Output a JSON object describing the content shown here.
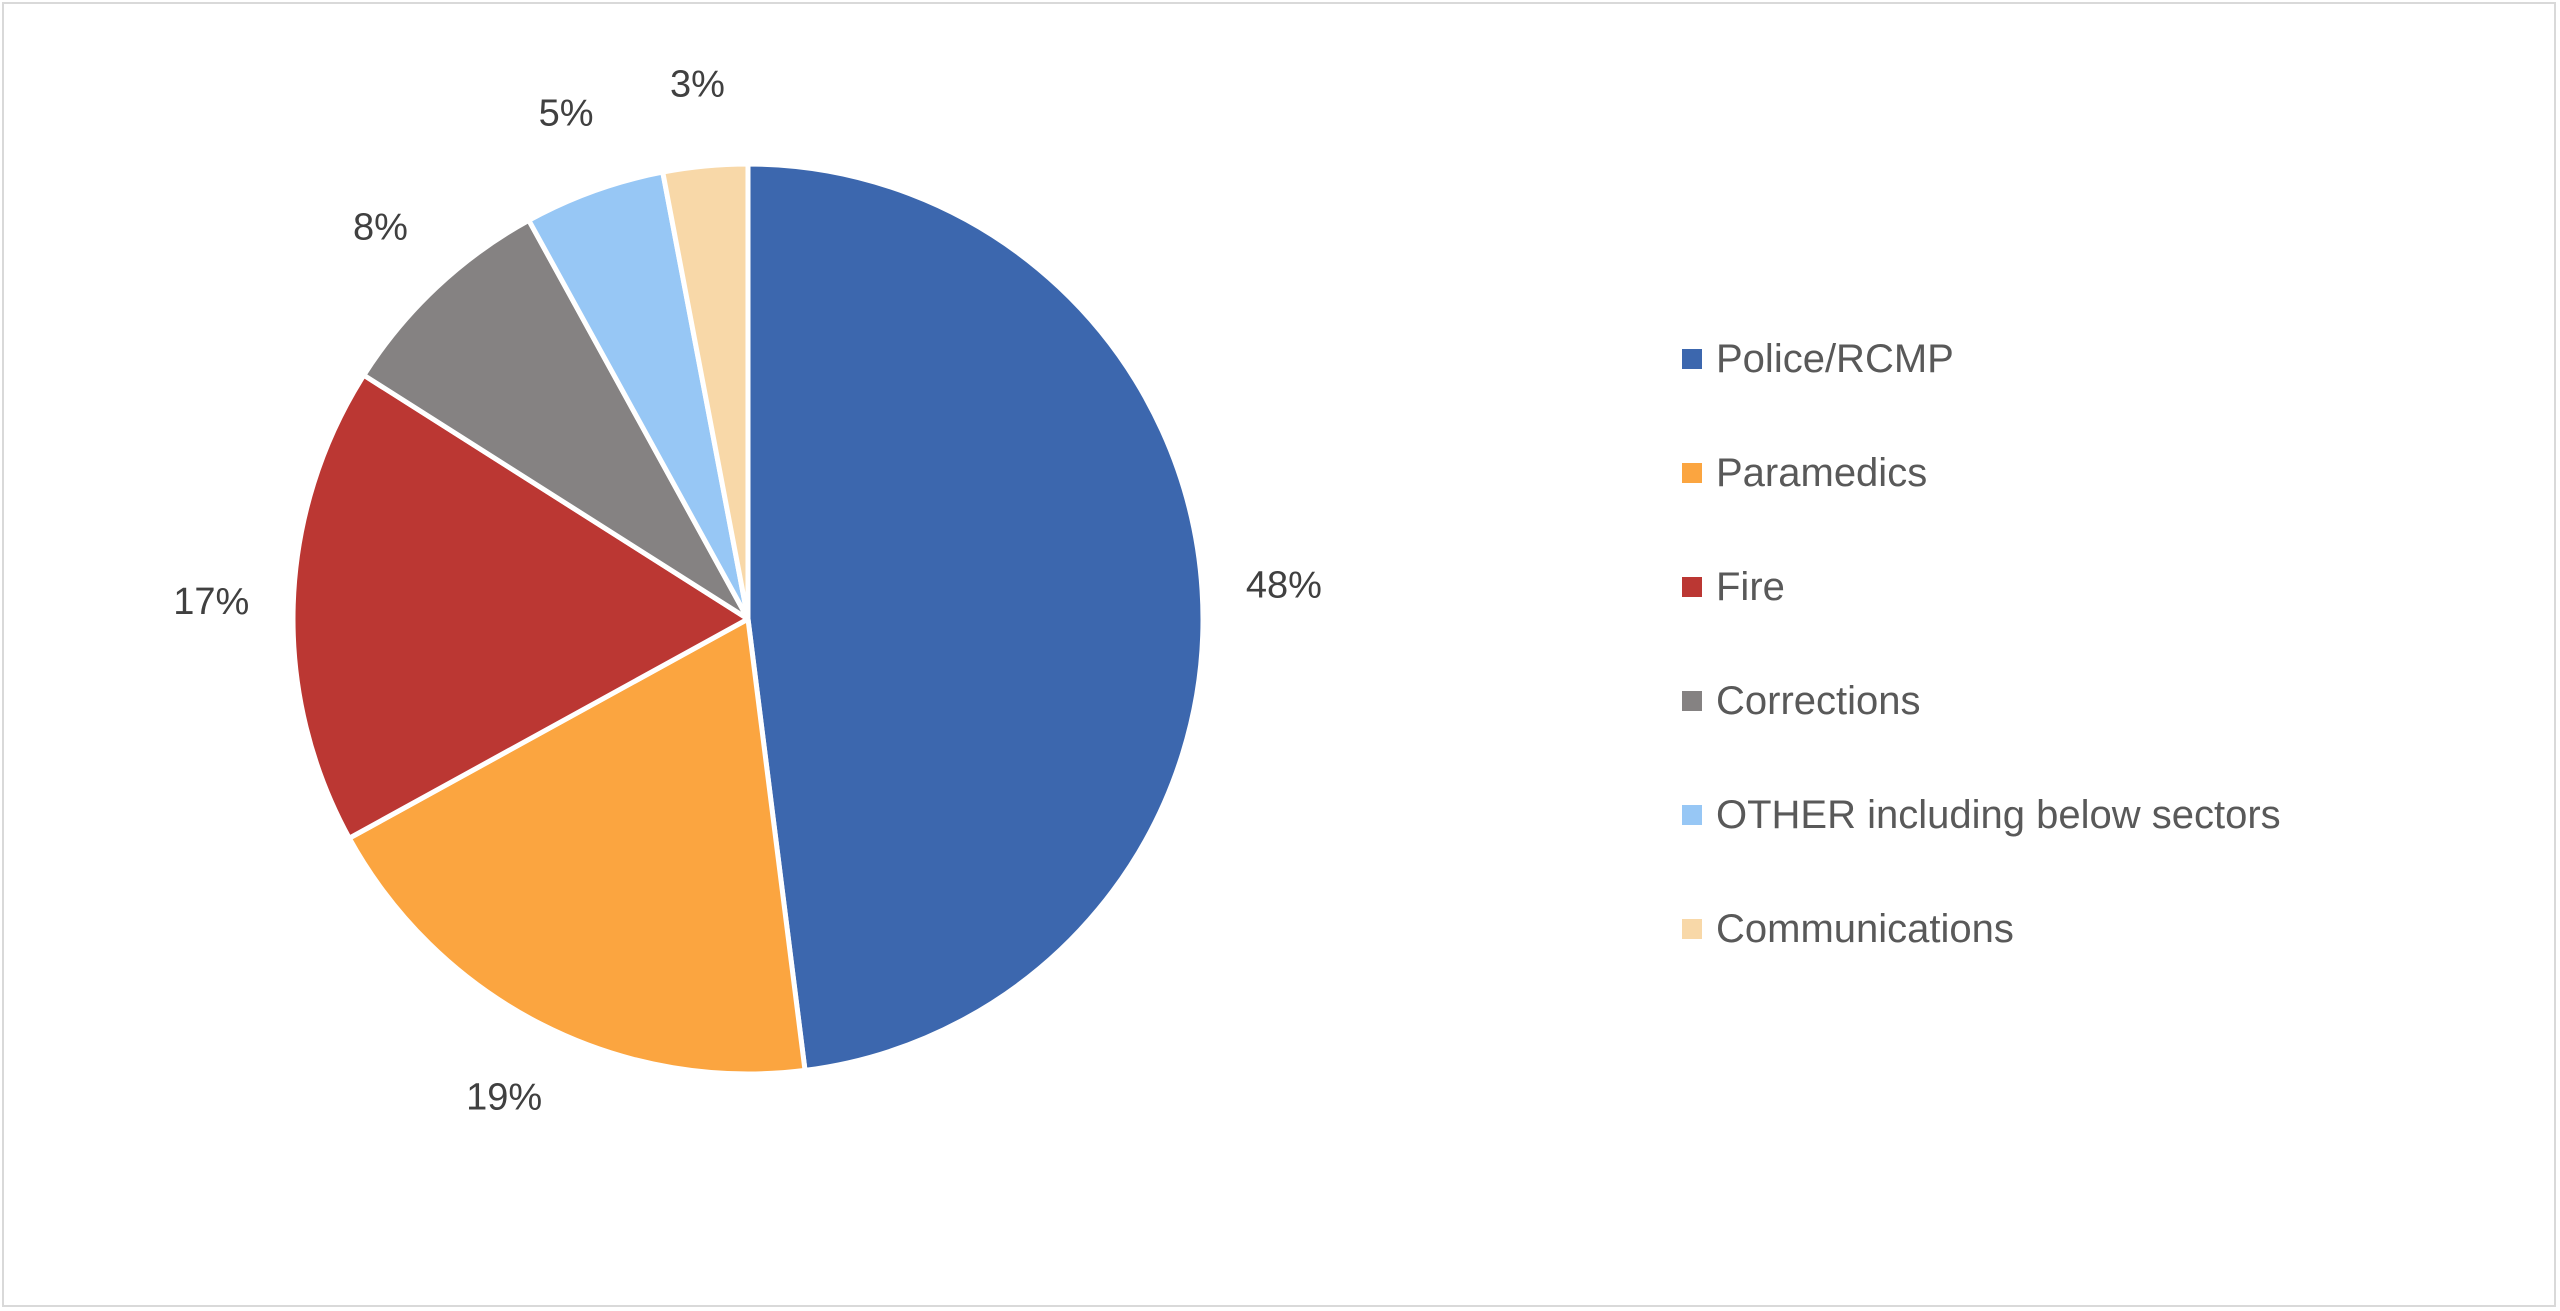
{
  "chart_data": {
    "type": "pie",
    "title": "",
    "series": [
      {
        "values": [
          48,
          19,
          17,
          8,
          5,
          3
        ]
      }
    ],
    "categories": [
      "Police/RCMP",
      "Paramedics",
      "Fire",
      "Corrections",
      "OTHER including below sectors",
      "Communications"
    ],
    "data_labels": [
      "48%",
      "19%",
      "17%",
      "8%",
      "5%",
      "3%"
    ],
    "colors": [
      "#3c67ae",
      "#fba540",
      "#bb3733",
      "#858282",
      "#97c7f5",
      "#f8d8a8"
    ],
    "start_angle": "top, clockwise",
    "legend_placement": "right"
  },
  "legend": {
    "items": [
      {
        "label": "Police/RCMP",
        "color": "#3c67ae"
      },
      {
        "label": "Paramedics",
        "color": "#fba540"
      },
      {
        "label": "Fire",
        "color": "#bb3733"
      },
      {
        "label": "Corrections",
        "color": "#858282"
      },
      {
        "label": "OTHER including below sectors",
        "color": "#97c7f5"
      },
      {
        "label": "Communications",
        "color": "#f8d8a8"
      }
    ]
  }
}
